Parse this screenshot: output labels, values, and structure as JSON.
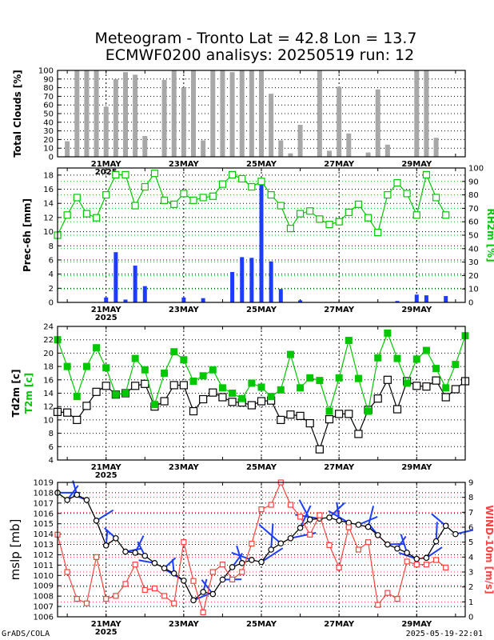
{
  "title_line1": "Meteogram - Tronto Lat = 42.8 Lon = 13.7",
  "title_line2": "ECMWF0200 analisys: 20250519 run: 12",
  "footer_left": "GrADS/COLA",
  "footer_right": "2025-05-19-22:01",
  "x_axis": {
    "start": "2025-05-19T18:00",
    "step_hours": 6,
    "date_ticks": [
      "21MAY",
      "23MAY",
      "25MAY",
      "27MAY",
      "29MAY"
    ],
    "year_label": "2025"
  },
  "colors": {
    "clouds": "#a8a8a8",
    "precip": "#1e3cff",
    "rh": "#00c800",
    "t2m": "#00c800",
    "td2m": "#000000",
    "mslp": "#000000",
    "wind": "#ff4040",
    "barbs": "#1e3cff"
  },
  "chart_data": [
    {
      "type": "bar",
      "ylabel": "Total Clouds [%]",
      "ylim": [
        0,
        100
      ],
      "yticks": [
        0,
        10,
        20,
        30,
        40,
        50,
        60,
        70,
        80,
        90,
        100
      ],
      "values": [
        18,
        100,
        100,
        100,
        58,
        90,
        98,
        95,
        24,
        0,
        89,
        100,
        80,
        100,
        19,
        100,
        100,
        98,
        100,
        100,
        100,
        73,
        19,
        4,
        37,
        0,
        100,
        7,
        81,
        27,
        0,
        5,
        78,
        14,
        0,
        0,
        100,
        100,
        22,
        0
      ]
    },
    {
      "type": "bar+line",
      "ylabel": "Prec-6h [mm]",
      "y2label": "RH2m [%]",
      "ylim": [
        0,
        19
      ],
      "yticks": [
        0,
        2,
        4,
        6,
        8,
        10,
        12,
        14,
        16,
        18
      ],
      "y2lim": [
        0,
        100
      ],
      "y2ticks": [
        0,
        10,
        20,
        30,
        40,
        50,
        60,
        70,
        80,
        90,
        100
      ],
      "precip": [
        0,
        0,
        0,
        0,
        0.7,
        7.1,
        0.4,
        5.2,
        2.3,
        0,
        0,
        0,
        0.7,
        0,
        0.6,
        0,
        0,
        4.3,
        6.4,
        6.3,
        17.0,
        5.8,
        1.9,
        0,
        0.3,
        0,
        0,
        0,
        0,
        0,
        0,
        0,
        0,
        0,
        0.2,
        0,
        1.1,
        1.0,
        0,
        0.9
      ],
      "rh": [
        50,
        65,
        78,
        66,
        63,
        80,
        95,
        95,
        72,
        86,
        96,
        76,
        73,
        81,
        76,
        78,
        79,
        88,
        95,
        92,
        86,
        90,
        80,
        72,
        55,
        66,
        68,
        62,
        58,
        60,
        67,
        73,
        63,
        52,
        80,
        89,
        81,
        65,
        95,
        78,
        65
      ]
    },
    {
      "type": "line",
      "ylabel": "Td2m [c]",
      "ylabel2": "T2m [c]",
      "ylim": [
        4,
        24
      ],
      "yticks": [
        4,
        6,
        8,
        10,
        12,
        14,
        16,
        18,
        20,
        22,
        24
      ],
      "t2m": [
        22,
        18,
        13.5,
        18,
        20.8,
        17.8,
        13.8,
        14,
        19.2,
        17.5,
        12.3,
        17,
        20.2,
        19,
        15.8,
        16.6,
        17.5,
        14.8,
        14,
        13.2,
        15.5,
        14.9,
        13.5,
        14.5,
        19.8,
        14.8,
        16.3,
        15.9,
        11.3,
        16.3,
        21.9,
        16.2,
        11.3,
        19.3,
        23,
        19.2,
        15.5,
        19.1,
        20.4,
        17.7,
        14.8,
        18.3,
        22.6
      ],
      "td2m": [
        11.2,
        11.1,
        10,
        12.1,
        14.2,
        15.1,
        13.8,
        14,
        15.1,
        15.4,
        12,
        12.8,
        15.2,
        15.2,
        11.3,
        13.1,
        14.1,
        13.4,
        12.7,
        12.6,
        12.2,
        12.8,
        12.9,
        10,
        10.8,
        10.6,
        9.5,
        5.6,
        10.1,
        10.9,
        10.9,
        7.9,
        11.5,
        13.2,
        16,
        11.6,
        15.8,
        15.1,
        15,
        15.9,
        13.4,
        14.6,
        15.8
      ]
    },
    {
      "type": "line",
      "ylabel": "mslp [mb]",
      "y2label": "WIND-10m [m/s]",
      "ylim": [
        1006,
        1019
      ],
      "yticks": [
        1006,
        1007,
        1008,
        1009,
        1010,
        1011,
        1012,
        1013,
        1014,
        1015,
        1016,
        1017,
        1018,
        1019
      ],
      "y2lim": [
        0,
        9
      ],
      "y2ticks": [
        0,
        1,
        2,
        3,
        4,
        5,
        6,
        7,
        8,
        9
      ],
      "mslp": [
        1018,
        1017.3,
        1017.8,
        1017.3,
        1015.3,
        1012.9,
        1013.6,
        1012.3,
        1012.2,
        1011.9,
        1011.2,
        1010.7,
        1010.2,
        1009.5,
        1007.6,
        1008.4,
        1008.2,
        1009.6,
        1010.8,
        1011.2,
        1011.5,
        1011.3,
        1012.5,
        1013.1,
        1013.6,
        1014.6,
        1015.4,
        1015.5,
        1015.6,
        1015.3,
        1015.1,
        1014.9,
        1014.7,
        1013.9,
        1013.0,
        1012.6,
        1012.2,
        1011.6,
        1011.7,
        1013.3,
        1014.8,
        1014.0
      ],
      "wind": [
        5.5,
        3.0,
        1.2,
        0.9,
        4.0,
        1.2,
        1.4,
        2.2,
        3.5,
        1.8,
        1.9,
        1.4,
        0.9,
        5.0,
        2.4,
        0.3,
        3.0,
        3.5,
        2.5,
        3.0,
        4.9,
        7.2,
        7.5,
        9.0,
        7.5,
        6.7,
        5.5,
        6.8,
        4.8,
        3.3,
        6.0,
        4.5,
        5.0,
        0.8,
        1.6,
        1.2,
        3.7,
        3.5,
        3.5,
        3.8,
        3.3
      ]
    }
  ]
}
